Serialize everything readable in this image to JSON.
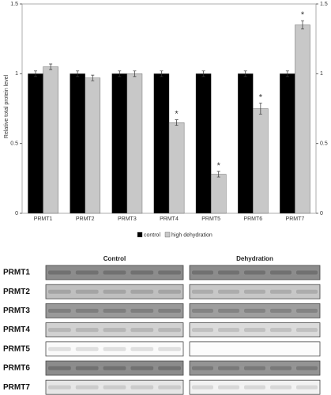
{
  "chart_data": {
    "type": "bar",
    "y_label": "Relative total protein level",
    "categories": [
      "PRMT1",
      "PRMT2",
      "PRMT3",
      "PRMT4",
      "PRMT5",
      "PRMT6",
      "PRMT7"
    ],
    "series": [
      {
        "name": "control",
        "color": "#000000",
        "values": [
          1,
          1,
          1,
          1,
          1,
          1,
          1
        ],
        "errors": [
          0.02,
          0.02,
          0.02,
          0.02,
          0.02,
          0.02,
          0.02
        ]
      },
      {
        "name": "high dehydration",
        "color": "#c8c8c8",
        "values": [
          1.05,
          0.97,
          1,
          0.65,
          0.28,
          0.75,
          1.35
        ],
        "errors": [
          0.02,
          0.02,
          0.02,
          0.02,
          0.02,
          0.04,
          0.03
        ]
      }
    ],
    "annotations": [
      {
        "category": 3,
        "text": "*"
      },
      {
        "category": 4,
        "text": "*"
      },
      {
        "category": 5,
        "text": "*"
      },
      {
        "category": 6,
        "text": "*"
      }
    ],
    "ylim": [
      0,
      1.5
    ],
    "yticks": [
      0,
      0.5,
      1,
      1.5
    ],
    "y2lim": [
      0,
      1.5
    ],
    "y2ticks": [
      0,
      0.5,
      1,
      1.5
    ],
    "legend": "bottom"
  },
  "blot": {
    "groups": [
      "Control",
      "Dehydration"
    ],
    "rows": [
      "PRMT1",
      "PRMT2",
      "PRMT3",
      "PRMT4",
      "PRMT5",
      "PRMT6",
      "PRMT7"
    ]
  }
}
